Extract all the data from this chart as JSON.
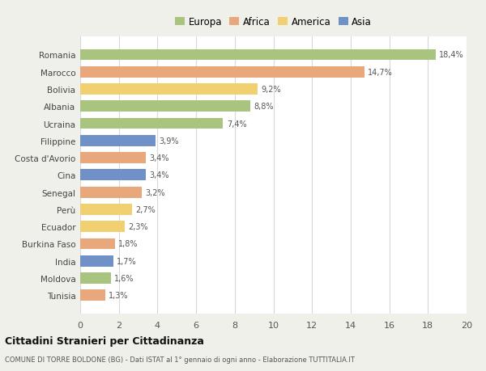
{
  "countries": [
    "Tunisia",
    "Moldova",
    "India",
    "Burkina Faso",
    "Ecuador",
    "Perù",
    "Senegal",
    "Cina",
    "Costa d'Avorio",
    "Filippine",
    "Ucraina",
    "Albania",
    "Bolivia",
    "Marocco",
    "Romania"
  ],
  "values": [
    1.3,
    1.6,
    1.7,
    1.8,
    2.3,
    2.7,
    3.2,
    3.4,
    3.4,
    3.9,
    7.4,
    8.8,
    9.2,
    14.7,
    18.4
  ],
  "labels": [
    "1,3%",
    "1,6%",
    "1,7%",
    "1,8%",
    "2,3%",
    "2,7%",
    "3,2%",
    "3,4%",
    "3,4%",
    "3,9%",
    "7,4%",
    "8,8%",
    "9,2%",
    "14,7%",
    "18,4%"
  ],
  "continents": [
    "Africa",
    "Europa",
    "Asia",
    "Africa",
    "America",
    "America",
    "Africa",
    "Asia",
    "Africa",
    "Asia",
    "Europa",
    "Europa",
    "America",
    "Africa",
    "Europa"
  ],
  "colors": {
    "Europa": "#a8c47e",
    "Africa": "#e8a87c",
    "America": "#f0d070",
    "Asia": "#7090c8"
  },
  "legend_order": [
    "Europa",
    "Africa",
    "America",
    "Asia"
  ],
  "title": "Cittadini Stranieri per Cittadinanza",
  "subtitle": "COMUNE DI TORRE BOLDONE (BG) - Dati ISTAT al 1° gennaio di ogni anno - Elaborazione TUTTITALIA.IT",
  "xlim": [
    0,
    20
  ],
  "xticks": [
    0,
    2,
    4,
    6,
    8,
    10,
    12,
    14,
    16,
    18,
    20
  ],
  "background_color": "#f0f0eb",
  "bar_background": "#ffffff",
  "grid_color": "#d8d8d8"
}
